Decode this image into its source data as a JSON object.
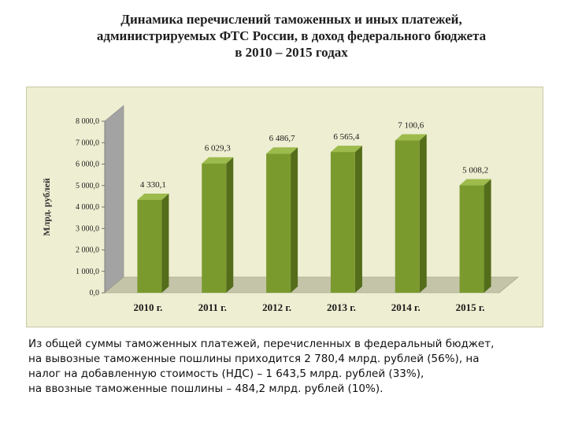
{
  "title_lines": [
    "Динамика перечислений таможенных и иных платежей,",
    "администрируемых ФТС России, в доход федерального бюджета",
    "в 2010 – 2015 годах"
  ],
  "chart_data": {
    "type": "bar",
    "title": "",
    "ylabel": "Млрд. рублей",
    "xlabel": "",
    "categories": [
      "2010 г.",
      "2011 г.",
      "2012 г.",
      "2013 г.",
      "2014 г.",
      "2015 г."
    ],
    "values": [
      4330.1,
      6029.3,
      6486.7,
      6565.4,
      7100.6,
      5008.2
    ],
    "value_labels": [
      "4 330,1",
      "6 029,3",
      "6 486,7",
      "6 565,4",
      "7 100,6",
      "5 008,2"
    ],
    "ylim": [
      0,
      8000
    ],
    "yticks": [
      0,
      1000,
      2000,
      3000,
      4000,
      5000,
      6000,
      7000,
      8000
    ],
    "ytick_labels": [
      "0,0",
      "1 000,0",
      "2 000,0",
      "3 000,0",
      "4 000,0",
      "5 000,0",
      "6 000,0",
      "7 000,0",
      "8 000,0"
    ],
    "grid": false,
    "legend": "none",
    "bar_color": "#7a9a2e",
    "bar_side_color": "#536d1b",
    "bar_top_color": "#9dbb4c",
    "wall_color": "#a3a3a3",
    "floor_color": "#c4c4a8"
  },
  "caption_lines": [
    "Из общей суммы таможенных платежей, перечисленных в федеральный бюджет,",
    "на вывозные таможенные пошлины приходится 2 780,4 млрд. рублей (56%), на",
    "налог на добавленную стоимость (НДС) – 1 643,5 млрд. рублей (33%),",
    "на ввозные таможенные пошлины – 484,2 млрд. рублей (10%)."
  ]
}
